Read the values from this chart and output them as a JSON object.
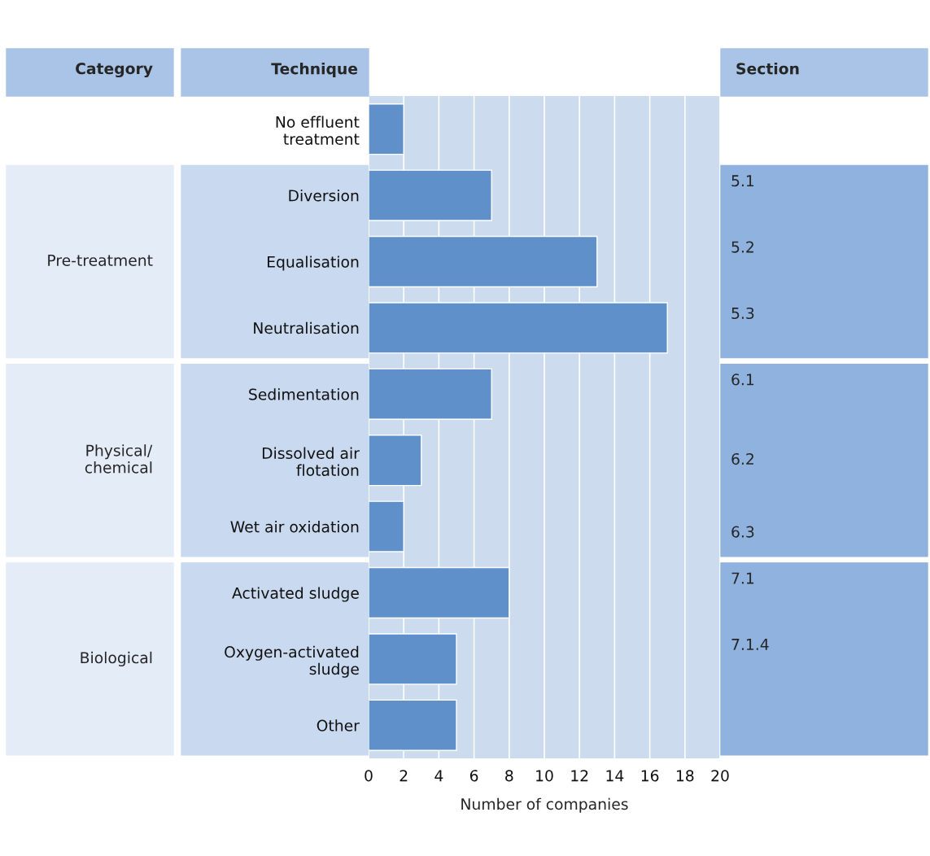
{
  "chart_data": {
    "type": "bar",
    "orientation": "horizontal",
    "categories": [
      "No effluent\ntreatment",
      "Diversion",
      "Equalisation",
      "Neutralisation",
      "Sedimentation",
      "Dissolved air\nflotation",
      "Wet air oxidation",
      "Activated sludge",
      "Oxygen-activated\nsludge",
      "Other"
    ],
    "values": [
      2,
      7,
      13,
      17,
      7,
      3,
      2,
      8,
      5,
      5
    ],
    "color": "#5f90ca",
    "xlim": [
      0,
      20
    ],
    "xticks": [
      0,
      2,
      4,
      6,
      8,
      10,
      12,
      14,
      16,
      18,
      20
    ],
    "xlabel": "Number of companies",
    "ylabel": "Technique",
    "grid": "x",
    "annotations": [
      "Category",
      "Section",
      "Pre-treatment",
      "Physical/\nchemical",
      "Biological",
      "5.1",
      "5.2",
      "5.3",
      "6.1",
      "6.2",
      "6.3",
      "7.1",
      "7.1.4"
    ]
  }
}
